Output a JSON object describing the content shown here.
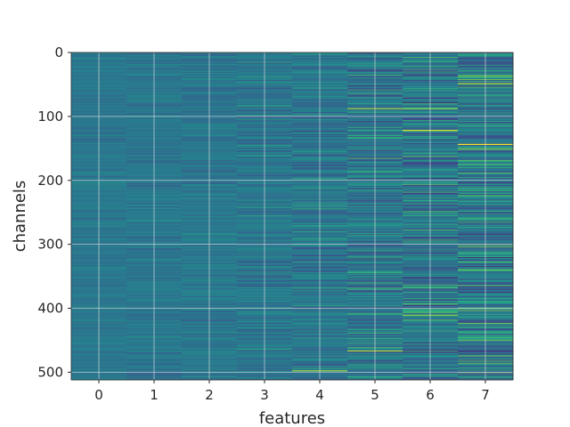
{
  "chart_data": {
    "type": "heatmap",
    "title": "",
    "xlabel": "features",
    "ylabel": "channels",
    "x_categories": [
      "0",
      "1",
      "2",
      "3",
      "4",
      "5",
      "6",
      "7"
    ],
    "x_ticks": [
      0,
      1,
      2,
      3,
      4,
      5,
      6,
      7
    ],
    "y_ticks": [
      0,
      100,
      200,
      300,
      400,
      500
    ],
    "n_rows": 512,
    "ylim": [
      512,
      0
    ],
    "grid": true,
    "colormap": "viridis",
    "column_spread": [
      0.22,
      0.28,
      0.34,
      0.44,
      0.55,
      0.68,
      0.78,
      0.92
    ],
    "column_center": [
      0.5,
      0.5,
      0.5,
      0.5,
      0.5,
      0.5,
      0.5,
      0.52
    ],
    "highlight_rows": [
      {
        "col": 7,
        "row": 143,
        "value": 1.0
      },
      {
        "col": 7,
        "row": 48,
        "value": 0.92
      },
      {
        "col": 6,
        "row": 121,
        "value": 0.95
      },
      {
        "col": 5,
        "row": 87,
        "value": 0.9
      },
      {
        "col": 4,
        "row": 497,
        "value": 0.9
      },
      {
        "col": 6,
        "row": 410,
        "value": 0.88
      },
      {
        "col": 5,
        "row": 466,
        "value": 0.92
      }
    ]
  },
  "colors": {
    "background": "#ffffff",
    "frame": "#262626",
    "grid": "#e6e6e6",
    "text": "#262626"
  }
}
